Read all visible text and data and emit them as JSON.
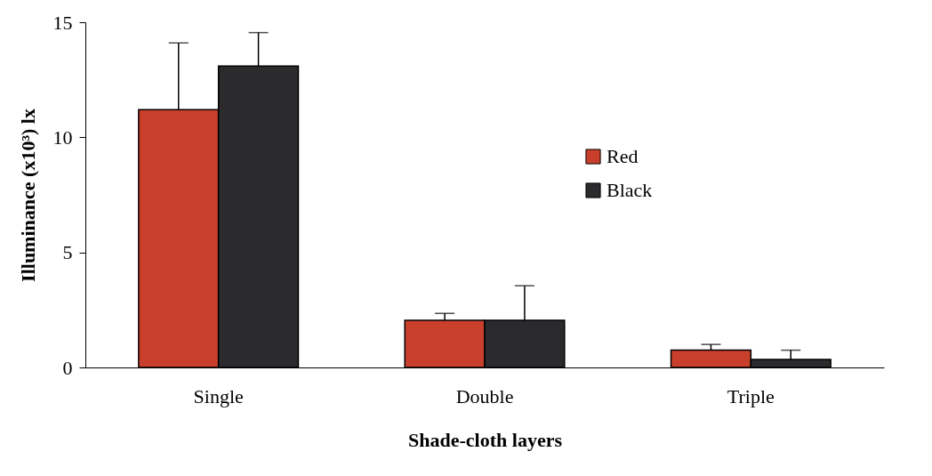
{
  "chart_data": {
    "type": "bar",
    "xlabel": "Shade-cloth layers",
    "ylabel": "Illuminance (x10³) lx",
    "categories": [
      "Single",
      "Double",
      "Triple"
    ],
    "series": [
      {
        "name": "Red",
        "color": "#c8402c",
        "values": [
          11.2,
          2.05,
          0.75
        ],
        "errors": [
          [
            11.2,
            14.1
          ],
          [
            2.05,
            2.35
          ],
          [
            0.75,
            1.0
          ]
        ]
      },
      {
        "name": "Black",
        "color": "#2b2b2e",
        "values": [
          13.1,
          2.05,
          0.35
        ],
        "errors": [
          [
            13.1,
            14.55
          ],
          [
            2.05,
            3.55
          ],
          [
            0.35,
            0.75
          ]
        ]
      }
    ],
    "ylim": [
      0,
      15
    ],
    "yticks": [
      0,
      5,
      10,
      15
    ],
    "grid": false,
    "legend": "right"
  }
}
